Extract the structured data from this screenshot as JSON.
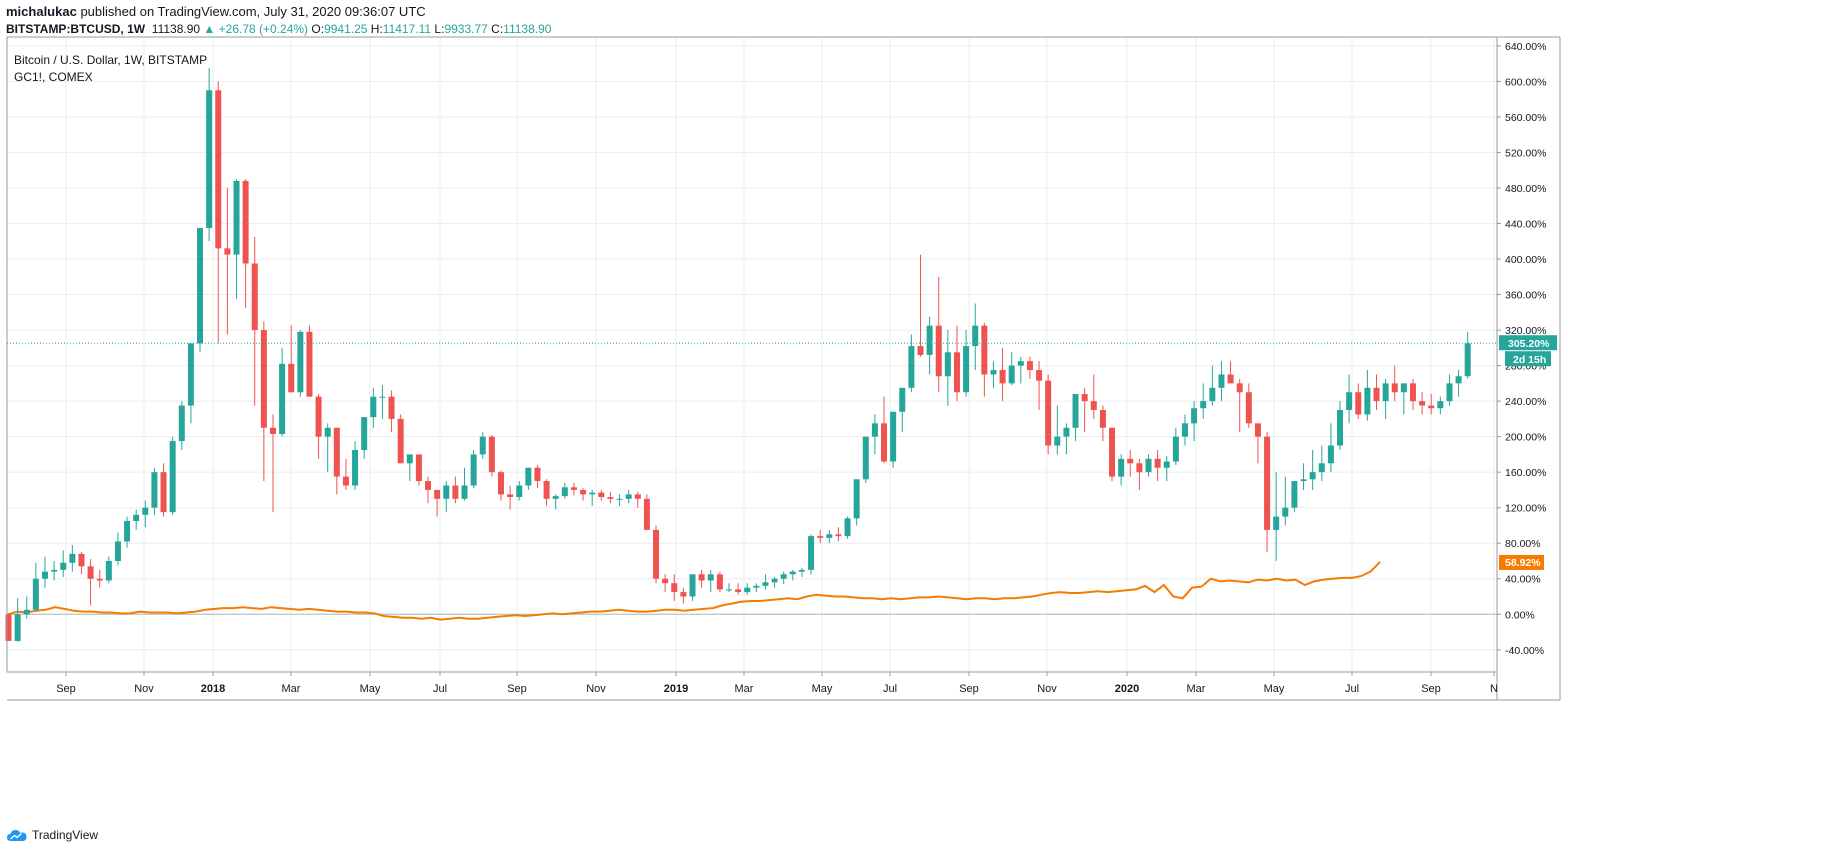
{
  "header": {
    "author": "michalukac",
    "published_text": "published on TradingView.com, July 31, 2020 09:36:07 UTC",
    "symbol": "BITSTAMP:BTCUSD, 1W",
    "last": "11138.90",
    "change": "+26.78 (+0.24%)",
    "o_label": "O:",
    "o": "9941.25",
    "h_label": "H:",
    "h": "11417.11",
    "l_label": "L:",
    "l": "9933.77",
    "c_label": "C:",
    "c": "11138.90"
  },
  "legend": {
    "main": "Bitcoin / U.S. Dollar, 1W, BITSTAMP",
    "compare": "GC1!, COMEX"
  },
  "footer": {
    "brand": "TradingView"
  },
  "colors": {
    "up": "#26a69a",
    "down": "#ef5350",
    "compare": "#f57c00",
    "grid": "#e9eef2",
    "axis": "#131722",
    "border": "#9598a1"
  },
  "chart_data": {
    "type": "candlestick",
    "y_unit": "%",
    "ylim": [
      -65,
      650
    ],
    "y_ticks": [
      640,
      600,
      560,
      520,
      480,
      440,
      400,
      360,
      320,
      280,
      240,
      200,
      160,
      120,
      80,
      40,
      0,
      -40
    ],
    "y_tick_labels": [
      "640.00%",
      "600.00%",
      "560.00%",
      "520.00%",
      "480.00%",
      "440.00%",
      "400.00%",
      "360.00%",
      "320.00%",
      "280.00%",
      "240.00%",
      "200.00%",
      "160.00%",
      "120.00%",
      "80.00%",
      "40.00%",
      "0.00%",
      "-40.00%"
    ],
    "x_ticks": [
      "Sep",
      "Nov",
      "2018",
      "Mar",
      "May",
      "Jul",
      "Sep",
      "Nov",
      "2019",
      "Mar",
      "May",
      "Jul",
      "Sep",
      "Nov",
      "2020",
      "Mar",
      "May",
      "Jul",
      "Sep",
      "N"
    ],
    "current_value_label": "305.20%",
    "countdown_label": "2d 15h",
    "compare_value_label": "58.92%",
    "current_value": 305.2,
    "btc_candles": [
      [
        0,
        0,
        -30,
        -30
      ],
      [
        -30,
        18,
        -31,
        0
      ],
      [
        0,
        20,
        -5,
        5
      ],
      [
        5,
        58,
        3,
        40
      ],
      [
        40,
        65,
        30,
        48
      ],
      [
        48,
        60,
        38,
        50
      ],
      [
        50,
        72,
        42,
        58
      ],
      [
        58,
        78,
        48,
        68
      ],
      [
        68,
        70,
        45,
        54
      ],
      [
        54,
        62,
        10,
        40
      ],
      [
        40,
        50,
        30,
        38
      ],
      [
        38,
        65,
        35,
        60
      ],
      [
        60,
        92,
        55,
        82
      ],
      [
        82,
        110,
        75,
        105
      ],
      [
        105,
        118,
        95,
        112
      ],
      [
        112,
        128,
        98,
        120
      ],
      [
        120,
        165,
        112,
        160
      ],
      [
        160,
        170,
        110,
        115
      ],
      [
        115,
        200,
        112,
        195
      ],
      [
        195,
        240,
        185,
        235
      ],
      [
        235,
        290,
        215,
        305
      ],
      [
        305,
        400,
        295,
        435
      ],
      [
        435,
        615,
        420,
        590
      ],
      [
        590,
        600,
        305,
        412
      ],
      [
        412,
        480,
        315,
        405
      ],
      [
        405,
        490,
        355,
        488
      ],
      [
        488,
        490,
        345,
        395
      ],
      [
        395,
        425,
        235,
        320
      ],
      [
        320,
        330,
        150,
        210
      ],
      [
        210,
        225,
        115,
        203
      ],
      [
        203,
        300,
        200,
        282
      ],
      [
        282,
        325,
        255,
        250
      ],
      [
        250,
        320,
        245,
        318
      ],
      [
        318,
        325,
        245,
        245
      ],
      [
        245,
        248,
        175,
        200
      ],
      [
        200,
        215,
        160,
        210
      ],
      [
        210,
        210,
        135,
        155
      ],
      [
        155,
        175,
        140,
        145
      ],
      [
        145,
        195,
        140,
        185
      ],
      [
        185,
        215,
        175,
        222
      ],
      [
        222,
        255,
        210,
        245
      ],
      [
        245,
        258,
        220,
        245
      ],
      [
        245,
        252,
        205,
        220
      ],
      [
        220,
        225,
        185,
        170
      ],
      [
        170,
        180,
        150,
        180
      ],
      [
        180,
        180,
        145,
        150
      ],
      [
        150,
        155,
        125,
        140
      ],
      [
        140,
        140,
        110,
        130
      ],
      [
        130,
        150,
        115,
        145
      ],
      [
        145,
        155,
        125,
        130
      ],
      [
        130,
        165,
        128,
        145
      ],
      [
        145,
        185,
        142,
        180
      ],
      [
        180,
        205,
        175,
        200
      ],
      [
        200,
        202,
        155,
        160
      ],
      [
        160,
        162,
        128,
        135
      ],
      [
        135,
        145,
        118,
        132
      ],
      [
        132,
        150,
        128,
        145
      ],
      [
        145,
        165,
        140,
        165
      ],
      [
        165,
        168,
        142,
        150
      ],
      [
        150,
        152,
        122,
        130
      ],
      [
        130,
        135,
        118,
        133
      ],
      [
        133,
        148,
        130,
        143
      ],
      [
        143,
        148,
        134,
        140
      ],
      [
        140,
        142,
        128,
        135
      ],
      [
        135,
        140,
        122,
        137
      ],
      [
        137,
        140,
        128,
        132
      ],
      [
        132,
        138,
        125,
        130
      ],
      [
        130,
        135,
        122,
        130
      ],
      [
        130,
        140,
        125,
        135
      ],
      [
        135,
        138,
        120,
        130
      ],
      [
        130,
        135,
        95,
        95
      ],
      [
        95,
        100,
        35,
        40
      ],
      [
        40,
        45,
        25,
        35
      ],
      [
        35,
        45,
        15,
        25
      ],
      [
        25,
        30,
        12,
        20
      ],
      [
        20,
        45,
        15,
        45
      ],
      [
        45,
        50,
        30,
        38
      ],
      [
        38,
        50,
        25,
        45
      ],
      [
        45,
        48,
        25,
        28
      ],
      [
        28,
        35,
        25,
        28
      ],
      [
        28,
        35,
        22,
        25
      ],
      [
        25,
        35,
        22,
        30
      ],
      [
        30,
        35,
        25,
        32
      ],
      [
        32,
        45,
        28,
        36
      ],
      [
        36,
        42,
        30,
        40
      ],
      [
        40,
        48,
        34,
        45
      ],
      [
        45,
        50,
        38,
        48
      ],
      [
        48,
        52,
        42,
        50
      ],
      [
        50,
        90,
        45,
        88
      ],
      [
        88,
        95,
        80,
        86
      ],
      [
        86,
        95,
        80,
        90
      ],
      [
        90,
        98,
        82,
        88
      ],
      [
        88,
        110,
        85,
        108
      ],
      [
        108,
        130,
        100,
        152
      ],
      [
        152,
        200,
        148,
        200
      ],
      [
        200,
        225,
        180,
        215
      ],
      [
        215,
        245,
        170,
        172
      ],
      [
        172,
        225,
        165,
        228
      ],
      [
        228,
        230,
        205,
        255
      ],
      [
        255,
        315,
        250,
        302
      ],
      [
        302,
        405,
        290,
        292
      ],
      [
        292,
        335,
        270,
        325
      ],
      [
        325,
        380,
        250,
        268
      ],
      [
        268,
        320,
        235,
        295
      ],
      [
        295,
        325,
        240,
        250
      ],
      [
        250,
        320,
        245,
        302
      ],
      [
        302,
        350,
        275,
        325
      ],
      [
        325,
        328,
        245,
        270
      ],
      [
        270,
        285,
        255,
        275
      ],
      [
        275,
        300,
        240,
        260
      ],
      [
        260,
        295,
        258,
        280
      ],
      [
        280,
        290,
        260,
        285
      ],
      [
        285,
        290,
        265,
        275
      ],
      [
        275,
        285,
        230,
        263
      ],
      [
        263,
        270,
        180,
        190
      ],
      [
        190,
        235,
        180,
        200
      ],
      [
        200,
        215,
        180,
        210
      ],
      [
        210,
        235,
        195,
        248
      ],
      [
        248,
        255,
        205,
        240
      ],
      [
        240,
        270,
        220,
        230
      ],
      [
        230,
        235,
        195,
        210
      ],
      [
        210,
        210,
        150,
        155
      ],
      [
        155,
        180,
        145,
        175
      ],
      [
        175,
        185,
        155,
        170
      ],
      [
        170,
        175,
        140,
        160
      ],
      [
        160,
        180,
        155,
        175
      ],
      [
        175,
        185,
        150,
        165
      ],
      [
        165,
        178,
        150,
        172
      ],
      [
        172,
        210,
        168,
        200
      ],
      [
        200,
        225,
        190,
        215
      ],
      [
        215,
        240,
        195,
        232
      ],
      [
        232,
        260,
        220,
        240
      ],
      [
        240,
        280,
        235,
        255
      ],
      [
        255,
        285,
        240,
        270
      ],
      [
        270,
        285,
        260,
        260
      ],
      [
        260,
        265,
        205,
        250
      ],
      [
        250,
        260,
        210,
        215
      ],
      [
        215,
        215,
        170,
        200
      ],
      [
        200,
        205,
        70,
        95
      ],
      [
        95,
        160,
        60,
        110
      ],
      [
        110,
        155,
        100,
        120
      ],
      [
        120,
        150,
        115,
        150
      ],
      [
        150,
        170,
        140,
        152
      ],
      [
        152,
        185,
        140,
        160
      ],
      [
        160,
        190,
        150,
        170
      ],
      [
        170,
        215,
        160,
        190
      ],
      [
        190,
        240,
        185,
        230
      ],
      [
        230,
        270,
        215,
        250
      ],
      [
        250,
        260,
        220,
        225
      ],
      [
        225,
        275,
        218,
        255
      ],
      [
        255,
        270,
        230,
        240
      ],
      [
        240,
        265,
        220,
        260
      ],
      [
        260,
        280,
        240,
        250
      ],
      [
        250,
        260,
        225,
        260
      ],
      [
        260,
        265,
        230,
        240
      ],
      [
        240,
        250,
        225,
        235
      ],
      [
        235,
        248,
        225,
        232
      ],
      [
        232,
        245,
        225,
        240
      ],
      [
        240,
        270,
        235,
        260
      ],
      [
        260,
        275,
        245,
        268
      ],
      [
        268,
        318,
        265,
        305
      ]
    ],
    "gold_series": [
      0,
      3,
      2,
      4,
      5,
      8,
      6,
      4,
      3,
      3,
      2,
      2,
      1,
      1,
      3,
      2,
      2,
      2,
      1,
      2,
      3,
      5,
      6,
      7,
      7,
      8,
      7,
      6,
      8,
      7,
      6,
      5,
      6,
      5,
      4,
      3,
      3,
      2,
      2,
      1,
      -2,
      -3,
      -4,
      -4,
      -5,
      -4,
      -6,
      -5,
      -4,
      -5,
      -5,
      -4,
      -3,
      -2,
      -1,
      -2,
      -1,
      0,
      1,
      0,
      1,
      2,
      3,
      3,
      4,
      5,
      4,
      3,
      3,
      4,
      5,
      5,
      4,
      5,
      6,
      7,
      10,
      12,
      14,
      15,
      15,
      16,
      17,
      18,
      17,
      20,
      22,
      21,
      20,
      20,
      19,
      18,
      18,
      17,
      18,
      17,
      18,
      19,
      19,
      20,
      19,
      18,
      17,
      18,
      18,
      17,
      18,
      18,
      19,
      20,
      22,
      24,
      25,
      24,
      24,
      25,
      26,
      25,
      26,
      27,
      28,
      32,
      25,
      33,
      20,
      18,
      30,
      31,
      40,
      37,
      38,
      37,
      36,
      39,
      38,
      40,
      38,
      39,
      33,
      37,
      39,
      40,
      41,
      41,
      43,
      48,
      58.92
    ]
  }
}
